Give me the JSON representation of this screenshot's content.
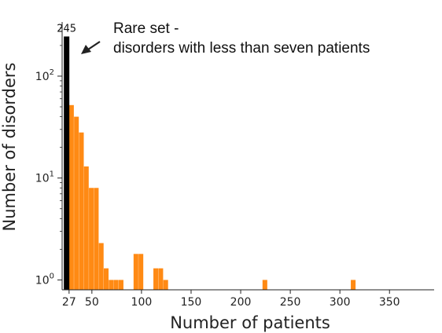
{
  "chart_data": {
    "type": "bar",
    "title": "",
    "xlabel": "Number of patients",
    "ylabel": "Number of disorders",
    "yscale": "log",
    "ylim": [
      0.8,
      340
    ],
    "xlim": [
      20,
      395
    ],
    "grid": false,
    "x_ticks": [
      {
        "value": 27,
        "label": "27"
      },
      {
        "value": 50,
        "label": "50"
      },
      {
        "value": 100,
        "label": "100"
      },
      {
        "value": 150,
        "label": "150"
      },
      {
        "value": 200,
        "label": "200"
      },
      {
        "value": 250,
        "label": "250"
      },
      {
        "value": 300,
        "label": "300"
      },
      {
        "value": 350,
        "label": "350"
      }
    ],
    "y_ticks": [
      {
        "value": 1,
        "base": "10",
        "exp": "0"
      },
      {
        "value": 10,
        "base": "10",
        "exp": "1"
      },
      {
        "value": 100,
        "base": "10",
        "exp": "2"
      }
    ],
    "rare_bar": {
      "x": 24.5,
      "value": 245,
      "label": "245",
      "color": "#000000"
    },
    "histogram_color": "#ff8a14",
    "bin_width": 4.8,
    "bins": [
      {
        "x": 27,
        "value": 52
      },
      {
        "x": 32,
        "value": 40
      },
      {
        "x": 37,
        "value": 28
      },
      {
        "x": 42,
        "value": 13
      },
      {
        "x": 47,
        "value": 8
      },
      {
        "x": 52,
        "value": 8
      },
      {
        "x": 57,
        "value": 2.3
      },
      {
        "x": 62,
        "value": 1.3
      },
      {
        "x": 67,
        "value": 1
      },
      {
        "x": 72,
        "value": 1
      },
      {
        "x": 77,
        "value": 1
      },
      {
        "x": 92,
        "value": 1.8
      },
      {
        "x": 97,
        "value": 1.8
      },
      {
        "x": 112,
        "value": 1.3
      },
      {
        "x": 117,
        "value": 1.3
      },
      {
        "x": 122,
        "value": 1
      },
      {
        "x": 222,
        "value": 1
      },
      {
        "x": 311,
        "value": 1
      }
    ],
    "annotation": {
      "line1": "Rare set -",
      "line2": "disorders with less than seven patients"
    }
  }
}
